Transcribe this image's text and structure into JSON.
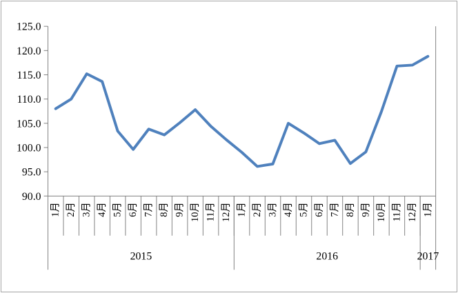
{
  "chart_data": {
    "type": "line",
    "title": "",
    "xlabel": "",
    "ylabel": "",
    "ylim": [
      90,
      125
    ],
    "ytick_step": 5,
    "ytick_labels": [
      "90.0",
      "95.0",
      "100.0",
      "105.0",
      "110.0",
      "115.0",
      "120.0",
      "125.0"
    ],
    "grid": false,
    "legend_position": "none",
    "month_labels": [
      "1月",
      "2月",
      "3月",
      "4月",
      "5月",
      "6月",
      "7月",
      "8月",
      "9月",
      "10月",
      "11月",
      "12月",
      "1月",
      "2月",
      "3月",
      "4月",
      "5月",
      "6月",
      "7月",
      "8月",
      "9月",
      "10月",
      "11月",
      "12月",
      "1月"
    ],
    "year_groups": [
      {
        "label": "2015",
        "start": 0,
        "count": 12
      },
      {
        "label": "2016",
        "start": 12,
        "count": 12
      },
      {
        "label": "2017",
        "start": 24,
        "count": 1
      }
    ],
    "series": [
      {
        "values": [
          108.0,
          110.0,
          115.2,
          113.6,
          103.4,
          99.6,
          103.8,
          102.6,
          105.1,
          107.8,
          104.4,
          101.6,
          99.0,
          96.1,
          96.6,
          105.0,
          103.0,
          100.8,
          101.5,
          96.7,
          99.1,
          107.4,
          116.8,
          117.0,
          118.8
        ]
      }
    ],
    "colors": {
      "line": "#4F81BD",
      "axis": "#808080",
      "text": "#000000",
      "background": "#FFFFFF",
      "border": "#A6A6A6"
    }
  }
}
